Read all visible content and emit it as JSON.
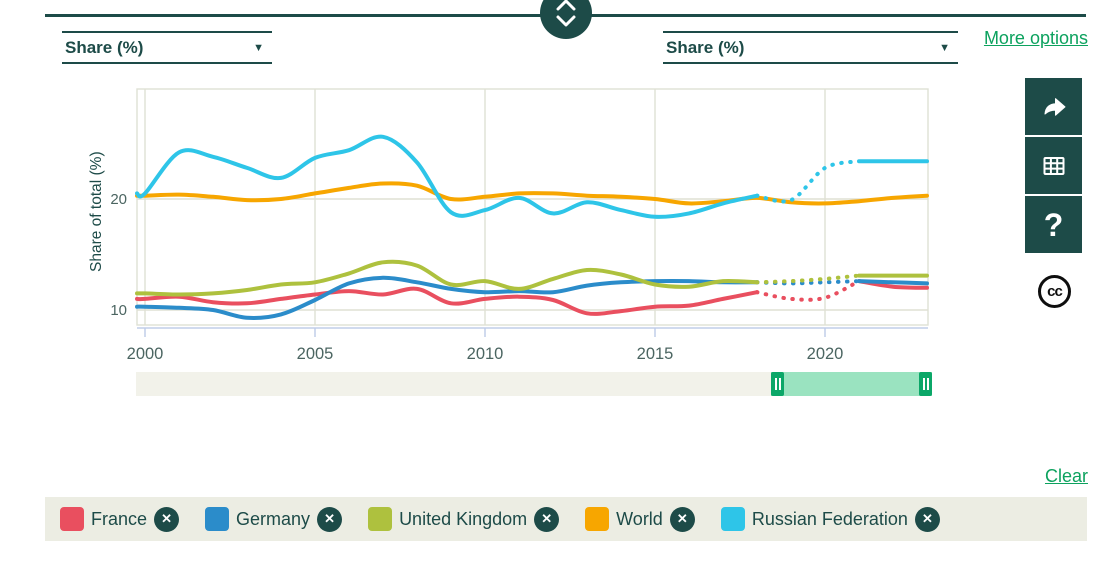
{
  "header": {
    "left_unit_dropdown": {
      "value": "Share (%)"
    },
    "right_unit_dropdown": {
      "value": "Share (%)"
    },
    "more_options_label": "More options"
  },
  "chart_data": {
    "type": "line",
    "title": "",
    "xlabel": "",
    "ylabel": "Share of total (%)",
    "x_ticks": [
      2000,
      2005,
      2010,
      2015,
      2020
    ],
    "y_ticks": [
      10,
      20
    ],
    "xlim": [
      2000,
      2023
    ],
    "ylim": [
      8.5,
      30
    ],
    "grid": true,
    "legend_position": "bottom",
    "dotted_note": "dotted segments (2018-2021) are provisional/estimated values",
    "years": [
      2000,
      2001,
      2002,
      2003,
      2004,
      2005,
      2006,
      2007,
      2008,
      2009,
      2010,
      2011,
      2012,
      2013,
      2014,
      2015,
      2016,
      2017,
      2018,
      2019,
      2020,
      2021,
      2022,
      2023
    ],
    "series": [
      {
        "name": "France",
        "color": "#e94f5f",
        "dotted_range": [
          2018,
          2021
        ],
        "values": [
          11.0,
          11.2,
          10.7,
          10.6,
          11.0,
          11.4,
          11.7,
          11.4,
          11.9,
          10.6,
          11.0,
          11.2,
          10.9,
          9.7,
          9.9,
          10.3,
          10.4,
          11.0,
          11.6,
          11.0,
          11.1,
          12.6,
          12.1,
          12.0
        ]
      },
      {
        "name": "Germany",
        "color": "#2b8cca",
        "dotted_range": [
          2018,
          2021
        ],
        "values": [
          10.3,
          10.2,
          10.0,
          9.3,
          9.6,
          10.9,
          12.4,
          12.9,
          12.5,
          11.9,
          11.6,
          11.7,
          11.6,
          12.2,
          12.5,
          12.6,
          12.6,
          12.5,
          12.5,
          12.4,
          12.5,
          12.6,
          12.5,
          12.4
        ]
      },
      {
        "name": "United Kingdom",
        "color": "#aec13e",
        "dotted_range": [
          2018,
          2021
        ],
        "values": [
          11.5,
          11.4,
          11.5,
          11.8,
          12.3,
          12.5,
          13.3,
          14.3,
          14.0,
          12.3,
          12.6,
          11.9,
          12.8,
          13.6,
          13.2,
          12.3,
          12.1,
          12.6,
          12.5,
          12.6,
          12.8,
          13.1,
          13.1,
          13.1
        ]
      },
      {
        "name": "World",
        "color": "#f7a600",
        "dotted_range": null,
        "values": [
          20.3,
          20.4,
          20.2,
          19.9,
          20.0,
          20.5,
          21.0,
          21.4,
          21.2,
          20.0,
          20.2,
          20.5,
          20.5,
          20.3,
          20.2,
          20.0,
          19.6,
          19.8,
          20.1,
          19.7,
          19.6,
          19.8,
          20.1,
          20.3
        ]
      },
      {
        "name": "Russian Federation",
        "color": "#2ec5e8",
        "dotted_range": [
          2018,
          2021
        ],
        "values": [
          20.5,
          24.2,
          23.8,
          22.8,
          21.9,
          23.7,
          24.4,
          25.6,
          23.3,
          18.8,
          19.0,
          20.1,
          18.7,
          19.7,
          19.0,
          18.4,
          18.7,
          19.6,
          20.3,
          19.9,
          22.8,
          23.4,
          23.4,
          23.4
        ]
      }
    ]
  },
  "toolbar": {
    "buttons": [
      {
        "name": "share",
        "icon": "share-arrow-icon"
      },
      {
        "name": "data-table",
        "icon": "table-icon"
      },
      {
        "name": "help",
        "icon": "question-mark-icon",
        "glyph": "?"
      }
    ],
    "license_icon": "creative-commons-icon",
    "license_text": "cc"
  },
  "range_slider": {
    "min_year": 2000,
    "max_year": 2023,
    "selected_start": 2018.4,
    "selected_end": 2023
  },
  "footer": {
    "clear_label": "Clear"
  },
  "legend": {
    "close_glyph": "✕",
    "items": [
      {
        "label": "France",
        "color": "#e94f5f"
      },
      {
        "label": "Germany",
        "color": "#2b8cca"
      },
      {
        "label": "United Kingdom",
        "color": "#aec13e"
      },
      {
        "label": "World",
        "color": "#f7a600"
      },
      {
        "label": "Russian Federation",
        "color": "#2ec5e8"
      }
    ]
  },
  "colors": {
    "dark_teal": "#1d4b48",
    "accent_green": "#0ca25e",
    "grid": "#dfe0d4",
    "axis_blue": "#c0cde9",
    "tick_text": "#4b6561",
    "panel_bg": "#ecede3",
    "slider_selection": "#9ae3c0"
  }
}
